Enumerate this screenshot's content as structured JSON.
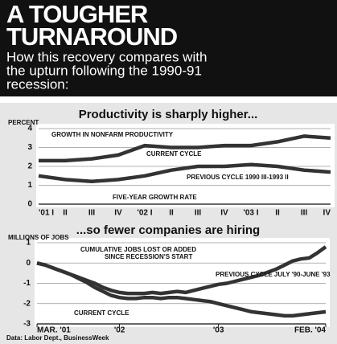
{
  "header": {
    "title_lines": [
      "A TOUGHER",
      "TURNAROUND"
    ],
    "subtitle_lines": [
      "How this recovery compares with",
      "the upturn following the 1990-91",
      "recession:"
    ]
  },
  "chart_data": [
    {
      "type": "line",
      "title": "Productivity is sharply higher...",
      "y_label": "PERCENT",
      "annotations": [
        "GROWTH IN NONFARM PRODUCTIVITY",
        "FIVE-YEAR GROWTH RATE"
      ],
      "categories": [
        "'01 I",
        "II",
        "III",
        "IV",
        "'02 I",
        "II",
        "III",
        "IV",
        "'03 I",
        "II",
        "III",
        "IV"
      ],
      "series": [
        {
          "name": "CURRENT CYCLE",
          "color": "#333333",
          "values": [
            2.3,
            2.3,
            2.4,
            2.6,
            3.1,
            3.0,
            3.0,
            3.1,
            3.1,
            3.3,
            3.6,
            3.5
          ]
        },
        {
          "name": "PREVIOUS CYCLE 1990 III-1993 II",
          "color": "#333333",
          "values": [
            1.5,
            1.3,
            1.2,
            1.3,
            1.5,
            1.8,
            2.0,
            2.0,
            2.1,
            2.0,
            1.8,
            1.7
          ]
        }
      ],
      "ylim": [
        0,
        4
      ],
      "yticks": [
        0,
        1,
        2,
        3,
        4
      ],
      "grid": true
    },
    {
      "type": "line",
      "title": "...so fewer companies are hiring",
      "y_label": "MILLIONS OF JOBS",
      "annotations": [
        "CUMULATIVE JOBS LOST OR ADDED",
        "SINCE RECESSION'S START"
      ],
      "x": [
        0,
        1,
        2,
        3,
        4,
        5,
        6,
        7,
        8,
        9,
        10,
        11,
        12,
        13,
        14,
        15,
        16,
        17,
        18,
        19,
        20,
        21,
        22,
        23,
        24,
        25,
        26,
        27,
        28,
        29,
        30,
        31,
        32,
        33,
        34,
        35
      ],
      "xlim": [
        0,
        35
      ],
      "xticks": [
        {
          "value": 0,
          "label": "MAR. '01"
        },
        {
          "value": 10,
          "label": "'02"
        },
        {
          "value": 22,
          "label": "'03"
        },
        {
          "value": 35,
          "label": "FEB. '04"
        }
      ],
      "series": [
        {
          "name": "PREVIOUS CYCLE JULY '90-JUNE '93",
          "color": "#333333",
          "values": [
            0,
            -0.1,
            -0.25,
            -0.4,
            -0.55,
            -0.7,
            -0.85,
            -1.0,
            -1.2,
            -1.35,
            -1.45,
            -1.5,
            -1.5,
            -1.5,
            -1.45,
            -1.5,
            -1.45,
            -1.4,
            -1.45,
            -1.35,
            -1.25,
            -1.15,
            -1.05,
            -1.0,
            -0.9,
            -0.8,
            -0.7,
            -0.6,
            -0.45,
            -0.3,
            -0.1,
            0.1,
            0.2,
            0.25,
            0.5,
            0.8
          ]
        },
        {
          "name": "CURRENT CYCLE",
          "color": "#333333",
          "values": [
            0,
            -0.1,
            -0.25,
            -0.4,
            -0.55,
            -0.75,
            -0.95,
            -1.2,
            -1.4,
            -1.6,
            -1.7,
            -1.75,
            -1.75,
            -1.7,
            -1.7,
            -1.75,
            -1.7,
            -1.7,
            -1.75,
            -1.8,
            -1.85,
            -1.9,
            -2.0,
            -2.1,
            -2.2,
            -2.3,
            -2.4,
            -2.45,
            -2.5,
            -2.55,
            -2.6,
            -2.6,
            -2.55,
            -2.5,
            -2.45,
            -2.4
          ]
        }
      ],
      "ylim": [
        -3,
        1
      ],
      "yticks": [
        -3,
        -2,
        -1,
        0,
        1
      ],
      "grid": true
    }
  ],
  "source": "Data: Labor Dept., BusinessWeek"
}
